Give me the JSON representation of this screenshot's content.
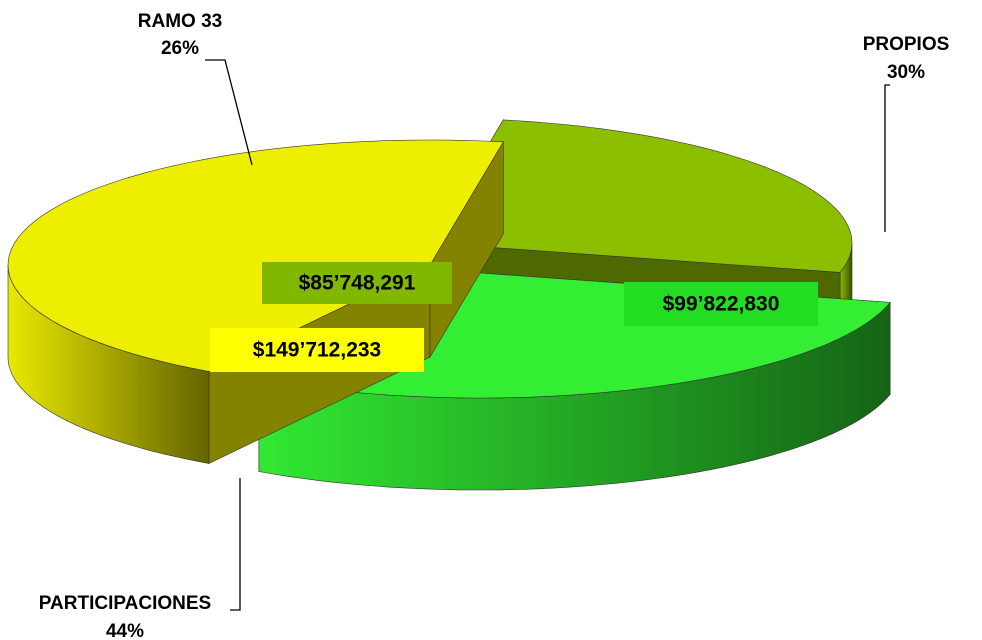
{
  "chart_data": {
    "type": "pie3d",
    "categories": [
      "RAMO 33",
      "PROPIOS",
      "PARTICIPACIONES"
    ],
    "values": [
      26,
      30,
      44
    ],
    "value_labels": [
      "26%",
      "30%",
      "44%"
    ],
    "amounts": [
      "$85’748,291",
      "$99’822,830",
      "$149’712,233"
    ],
    "colors": [
      "#8cbf00",
      "#33ee33",
      "#eeee00"
    ]
  }
}
